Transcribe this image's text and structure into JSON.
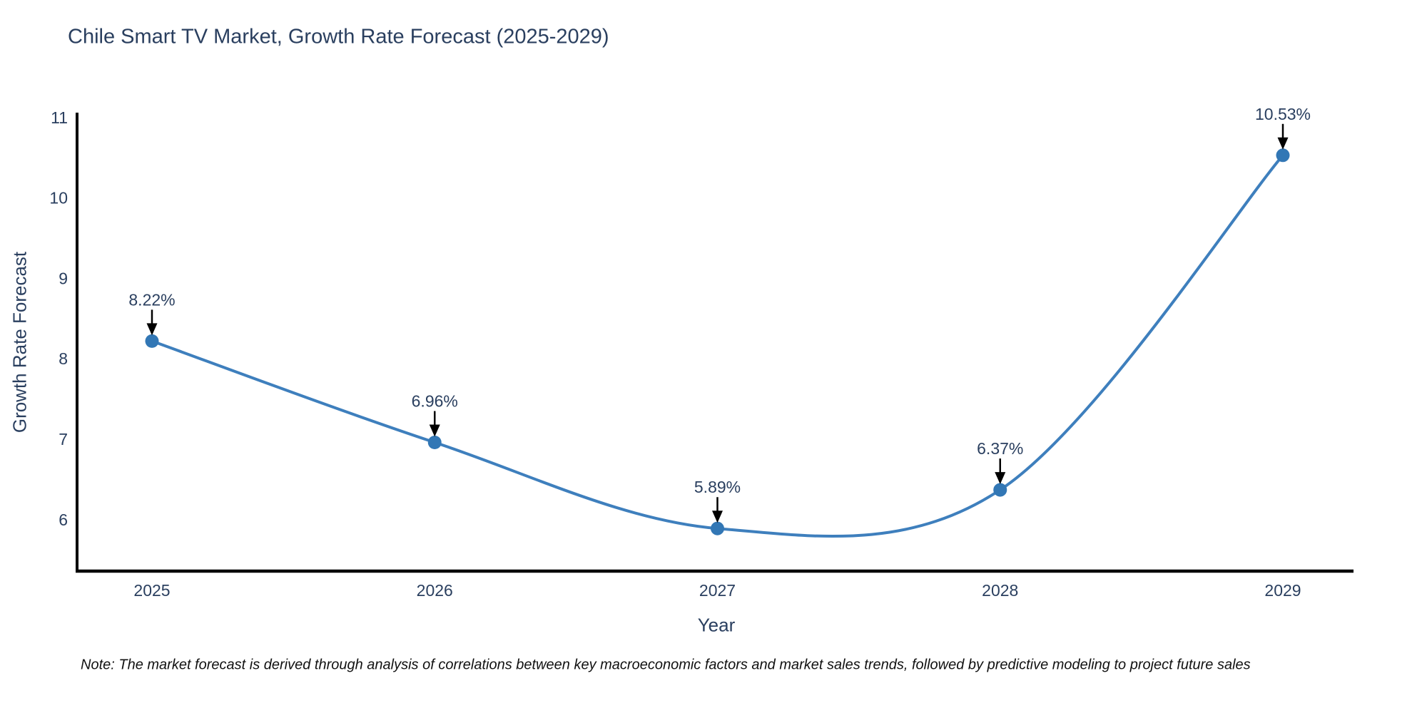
{
  "title": "Chile Smart TV Market, Growth Rate Forecast (2025-2029)",
  "note": "Note: The market forecast is derived through analysis of correlations between key macroeconomic factors and market sales trends, followed by predictive modeling to project future sales",
  "chart_data": {
    "type": "line",
    "title": "Chile Smart TV Market, Growth Rate Forecast (2025-2029)",
    "xlabel": "Year",
    "ylabel": "Growth Rate Forecast",
    "categories": [
      "2025",
      "2026",
      "2027",
      "2028",
      "2029"
    ],
    "values": [
      8.22,
      6.96,
      5.89,
      6.37,
      10.53
    ],
    "point_labels": [
      "8.22%",
      "6.96%",
      "5.89%",
      "6.37%",
      "10.53%"
    ],
    "line_shape": "spline",
    "y_ticks": [
      6,
      7,
      8,
      9,
      10,
      11
    ],
    "ylim": [
      5.36,
      11.06
    ],
    "grid": false,
    "legend": "none",
    "annotations": "black arrows from labels down to markers",
    "colors": {
      "line": "#3e7fbd",
      "marker": "#3277b5",
      "axis": "#000000",
      "text": "#2a3f5f",
      "arrow": "#000000",
      "background": "#ffffff"
    }
  }
}
